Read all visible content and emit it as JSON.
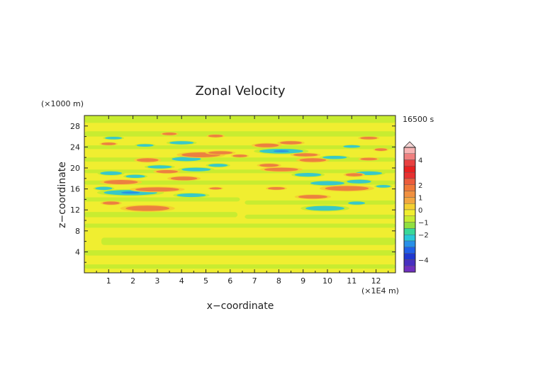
{
  "chart_data": {
    "type": "heatmap",
    "title": "Zonal Velocity",
    "xlabel": "x−coordinate",
    "ylabel": "z−coordinate",
    "x_unit": "(×1E4 m)",
    "y_unit": "(×1000 m)",
    "time_label": "16500 s",
    "xlim": [
      0,
      12.8
    ],
    "ylim": [
      0,
      30
    ],
    "x_ticks": [
      "1",
      "2",
      "3",
      "4",
      "5",
      "6",
      "7",
      "8",
      "9",
      "10",
      "11",
      "12"
    ],
    "y_ticks": [
      "4",
      "8",
      "12",
      "16",
      "20",
      "24",
      "28"
    ],
    "colorbar": {
      "labels": [
        "4",
        "2",
        "1",
        "0",
        "−1",
        "−2",
        "−4"
      ],
      "label_values": [
        4,
        2,
        1,
        0,
        -1,
        -2,
        -4
      ],
      "levels": [
        5,
        4.5,
        4,
        3.5,
        3,
        2.5,
        2,
        1.5,
        1,
        0.5,
        0,
        -0.5,
        -1,
        -1.5,
        -2,
        -2.5,
        -3,
        -3.5,
        -4,
        -4.5,
        -5
      ],
      "colors": [
        "#f8b4b4",
        "#f08080",
        "#e84040",
        "#e82020",
        "#e83030",
        "#ec5c3c",
        "#f07838",
        "#f09040",
        "#f2a640",
        "#f4d030",
        "#f0ee30",
        "#c8ec30",
        "#90e040",
        "#38d898",
        "#28c8d8",
        "#2890e8",
        "#2060e8",
        "#2038d0",
        "#4830c0",
        "#7030c0"
      ]
    },
    "palette": {
      "background": "#f0ee30",
      "bands": "#c8ec30",
      "positive": "#ec8040",
      "positive_weak": "#f4d030",
      "negative": "#38c8c8",
      "negative_strong": "#2890e8"
    },
    "bands": [
      {
        "x": [
          0,
          12.8
        ],
        "y": [
          0.8,
          1.6
        ]
      },
      {
        "x": [
          0,
          12.8
        ],
        "y": [
          3.3,
          4.3
        ]
      },
      {
        "x": [
          0.7,
          12.8
        ],
        "y": [
          5.3,
          6.7
        ]
      },
      {
        "x": [
          0,
          12.8
        ],
        "y": [
          8.6,
          9.4
        ]
      },
      {
        "x": [
          0,
          6.3
        ],
        "y": [
          10.6,
          11.6
        ]
      },
      {
        "x": [
          6.6,
          12.8
        ],
        "y": [
          10.3,
          11.1
        ]
      },
      {
        "x": [
          0,
          6.4
        ],
        "y": [
          13.6,
          14.4
        ]
      },
      {
        "x": [
          6.6,
          12.8
        ],
        "y": [
          13.0,
          13.8
        ]
      },
      {
        "x": [
          0,
          12.8
        ],
        "y": [
          16.8,
          17.6
        ]
      },
      {
        "x": [
          0,
          12.8
        ],
        "y": [
          19.0,
          19.7
        ]
      },
      {
        "x": [
          0,
          12.8
        ],
        "y": [
          21.2,
          22.0
        ]
      },
      {
        "x": [
          0,
          12.8
        ],
        "y": [
          23.6,
          24.3
        ]
      },
      {
        "x": [
          0,
          12.8
        ],
        "y": [
          26.0,
          27.0
        ]
      },
      {
        "x": [
          0,
          12.8
        ],
        "y": [
          28.6,
          30
        ]
      }
    ],
    "anomalies": [
      {
        "x": 2.6,
        "z": 12.3,
        "a": 0.9,
        "b": 0.5,
        "sign": 1
      },
      {
        "x": 1.1,
        "z": 13.3,
        "a": 0.35,
        "b": 0.3,
        "sign": 1
      },
      {
        "x": 1.9,
        "z": 15.3,
        "a": 1.1,
        "b": 0.5,
        "sign": -1
      },
      {
        "x": 3.0,
        "z": 15.9,
        "a": 0.9,
        "b": 0.4,
        "sign": 1
      },
      {
        "x": 4.4,
        "z": 14.8,
        "a": 0.6,
        "b": 0.35,
        "sign": -1
      },
      {
        "x": 0.8,
        "z": 16.1,
        "a": 0.35,
        "b": 0.3,
        "sign": -1
      },
      {
        "x": 1.5,
        "z": 17.3,
        "a": 0.7,
        "b": 0.4,
        "sign": 1
      },
      {
        "x": 1.1,
        "z": 19.0,
        "a": 0.45,
        "b": 0.35,
        "sign": -1
      },
      {
        "x": 2.1,
        "z": 18.4,
        "a": 0.4,
        "b": 0.3,
        "sign": -1
      },
      {
        "x": 3.4,
        "z": 19.3,
        "a": 0.45,
        "b": 0.3,
        "sign": 1
      },
      {
        "x": 4.1,
        "z": 18.0,
        "a": 0.55,
        "b": 0.35,
        "sign": 1
      },
      {
        "x": 4.6,
        "z": 19.7,
        "a": 0.6,
        "b": 0.35,
        "sign": -1
      },
      {
        "x": 3.1,
        "z": 20.2,
        "a": 0.5,
        "b": 0.3,
        "sign": -1
      },
      {
        "x": 2.6,
        "z": 21.5,
        "a": 0.45,
        "b": 0.35,
        "sign": 1
      },
      {
        "x": 4.2,
        "z": 21.7,
        "a": 0.6,
        "b": 0.4,
        "sign": -1
      },
      {
        "x": 4.8,
        "z": 22.5,
        "a": 0.8,
        "b": 0.45,
        "sign": 1
      },
      {
        "x": 5.6,
        "z": 22.9,
        "a": 0.5,
        "b": 0.3,
        "sign": 1
      },
      {
        "x": 5.5,
        "z": 20.5,
        "a": 0.4,
        "b": 0.3,
        "sign": -1
      },
      {
        "x": 1.0,
        "z": 24.6,
        "a": 0.3,
        "b": 0.25,
        "sign": 1
      },
      {
        "x": 2.5,
        "z": 24.3,
        "a": 0.35,
        "b": 0.25,
        "sign": -1
      },
      {
        "x": 4.0,
        "z": 24.8,
        "a": 0.5,
        "b": 0.3,
        "sign": -1
      },
      {
        "x": 1.2,
        "z": 25.7,
        "a": 0.35,
        "b": 0.25,
        "sign": -1
      },
      {
        "x": 3.5,
        "z": 26.5,
        "a": 0.3,
        "b": 0.25,
        "sign": 1
      },
      {
        "x": 5.4,
        "z": 26.1,
        "a": 0.3,
        "b": 0.25,
        "sign": 1
      },
      {
        "x": 8.1,
        "z": 23.2,
        "a": 0.9,
        "b": 0.45,
        "sign": -1
      },
      {
        "x": 7.5,
        "z": 24.3,
        "a": 0.5,
        "b": 0.35,
        "sign": 1
      },
      {
        "x": 8.5,
        "z": 24.8,
        "a": 0.45,
        "b": 0.3,
        "sign": 1
      },
      {
        "x": 9.1,
        "z": 22.5,
        "a": 0.5,
        "b": 0.3,
        "sign": 1
      },
      {
        "x": 9.4,
        "z": 21.5,
        "a": 0.55,
        "b": 0.35,
        "sign": 1
      },
      {
        "x": 10.3,
        "z": 22.0,
        "a": 0.5,
        "b": 0.3,
        "sign": -1
      },
      {
        "x": 7.6,
        "z": 20.5,
        "a": 0.4,
        "b": 0.3,
        "sign": 1
      },
      {
        "x": 8.1,
        "z": 19.7,
        "a": 0.7,
        "b": 0.35,
        "sign": 1
      },
      {
        "x": 9.2,
        "z": 18.7,
        "a": 0.55,
        "b": 0.35,
        "sign": -1
      },
      {
        "x": 10.0,
        "z": 17.1,
        "a": 0.7,
        "b": 0.4,
        "sign": -1
      },
      {
        "x": 10.8,
        "z": 16.1,
        "a": 0.9,
        "b": 0.45,
        "sign": 1
      },
      {
        "x": 11.3,
        "z": 17.4,
        "a": 0.5,
        "b": 0.35,
        "sign": -1
      },
      {
        "x": 11.7,
        "z": 19.0,
        "a": 0.55,
        "b": 0.35,
        "sign": -1
      },
      {
        "x": 11.1,
        "z": 18.7,
        "a": 0.35,
        "b": 0.3,
        "sign": 1
      },
      {
        "x": 11.7,
        "z": 21.7,
        "a": 0.35,
        "b": 0.25,
        "sign": 1
      },
      {
        "x": 11.0,
        "z": 24.1,
        "a": 0.35,
        "b": 0.25,
        "sign": -1
      },
      {
        "x": 11.7,
        "z": 25.7,
        "a": 0.35,
        "b": 0.25,
        "sign": 1
      },
      {
        "x": 12.2,
        "z": 23.5,
        "a": 0.25,
        "b": 0.25,
        "sign": 1
      },
      {
        "x": 9.4,
        "z": 14.5,
        "a": 0.6,
        "b": 0.35,
        "sign": 1
      },
      {
        "x": 11.2,
        "z": 13.3,
        "a": 0.35,
        "b": 0.3,
        "sign": -1
      },
      {
        "x": 9.9,
        "z": 12.3,
        "a": 0.8,
        "b": 0.45,
        "sign": -1
      },
      {
        "x": 7.9,
        "z": 16.1,
        "a": 0.35,
        "b": 0.25,
        "sign": 1
      },
      {
        "x": 12.3,
        "z": 16.5,
        "a": 0.3,
        "b": 0.25,
        "sign": -1
      },
      {
        "x": 6.4,
        "z": 22.3,
        "a": 0.3,
        "b": 0.25,
        "sign": 1
      },
      {
        "x": 5.4,
        "z": 16.1,
        "a": 0.25,
        "b": 0.2,
        "sign": 1
      }
    ]
  }
}
